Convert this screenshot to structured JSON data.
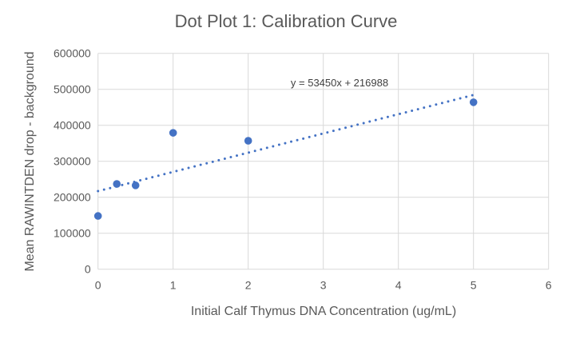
{
  "chart_data": {
    "type": "scatter",
    "title": "Dot Plot 1: Calibration Curve",
    "xlabel": "Initial Calf Thymus DNA Concentration (ug/mL)",
    "ylabel": "Mean RAWINTDEN drop - background",
    "xlim": [
      0,
      6
    ],
    "ylim": [
      0,
      600000
    ],
    "xticks": [
      "0",
      "1",
      "2",
      "3",
      "4",
      "5",
      "6"
    ],
    "yticks": [
      "0",
      "100000",
      "200000",
      "300000",
      "400000",
      "500000",
      "600000"
    ],
    "grid": true,
    "legend": "none",
    "points": [
      {
        "x": 0,
        "y": 148000
      },
      {
        "x": 0.25,
        "y": 237000
      },
      {
        "x": 0.5,
        "y": 233000
      },
      {
        "x": 1,
        "y": 379000
      },
      {
        "x": 2,
        "y": 357000
      },
      {
        "x": 5,
        "y": 464000
      }
    ],
    "trendline": {
      "type": "linear",
      "slope": 53450,
      "intercept": 216988,
      "style": "dotted",
      "label": "y = 53450x + 216988"
    },
    "color": "#4472C4"
  }
}
